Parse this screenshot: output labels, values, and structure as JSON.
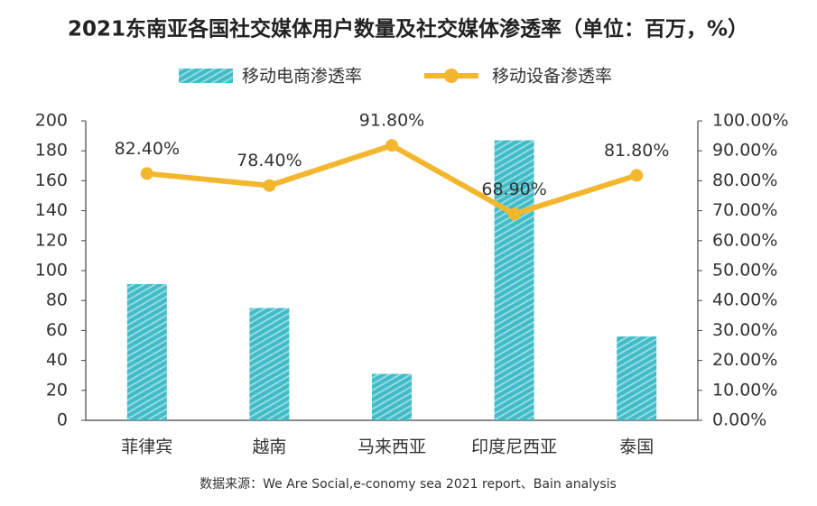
{
  "chart_data": {
    "type": "bar",
    "title": "2021东南亚各国社交媒体用户数量及社交媒体渗透率（单位：百万，%）",
    "source": "数据来源：We Are Social,e-conomy sea 2021 report、Bain analysis",
    "categories": [
      "菲律宾",
      "越南",
      "马来西亚",
      "印度尼西亚",
      "泰国"
    ],
    "series": [
      {
        "name": "移动电商渗透率",
        "type": "bar",
        "color": "#3fbcc8",
        "values": [
          91,
          75,
          31,
          187,
          56
        ]
      },
      {
        "name": "移动设备渗透率",
        "type": "line",
        "axis": "y2",
        "color": "#f3b72f",
        "values": [
          82.4,
          78.4,
          91.8,
          68.9,
          81.8
        ],
        "value_labels": [
          "82.40%",
          "78.40%",
          "91.80%",
          "68.90%",
          "81.80%"
        ]
      }
    ],
    "ylim": [
      0,
      200
    ],
    "yticks": [
      0,
      20,
      40,
      60,
      80,
      100,
      120,
      140,
      160,
      180,
      200
    ],
    "y2lim": [
      0,
      100
    ],
    "y2ticks": [
      {
        "value": 0,
        "label": "0.00%"
      },
      {
        "value": 10,
        "label": "10.00%"
      },
      {
        "value": 20,
        "label": "20.00%"
      },
      {
        "value": 30,
        "label": "30.00%"
      },
      {
        "value": 40,
        "label": "40.00%"
      },
      {
        "value": 50,
        "label": "50.00%"
      },
      {
        "value": 60,
        "label": "60.00%"
      },
      {
        "value": 70,
        "label": "70.00%"
      },
      {
        "value": 80,
        "label": "80.00%"
      },
      {
        "value": 90,
        "label": "90.00%"
      },
      {
        "value": 100,
        "label": "100.00%"
      }
    ]
  }
}
